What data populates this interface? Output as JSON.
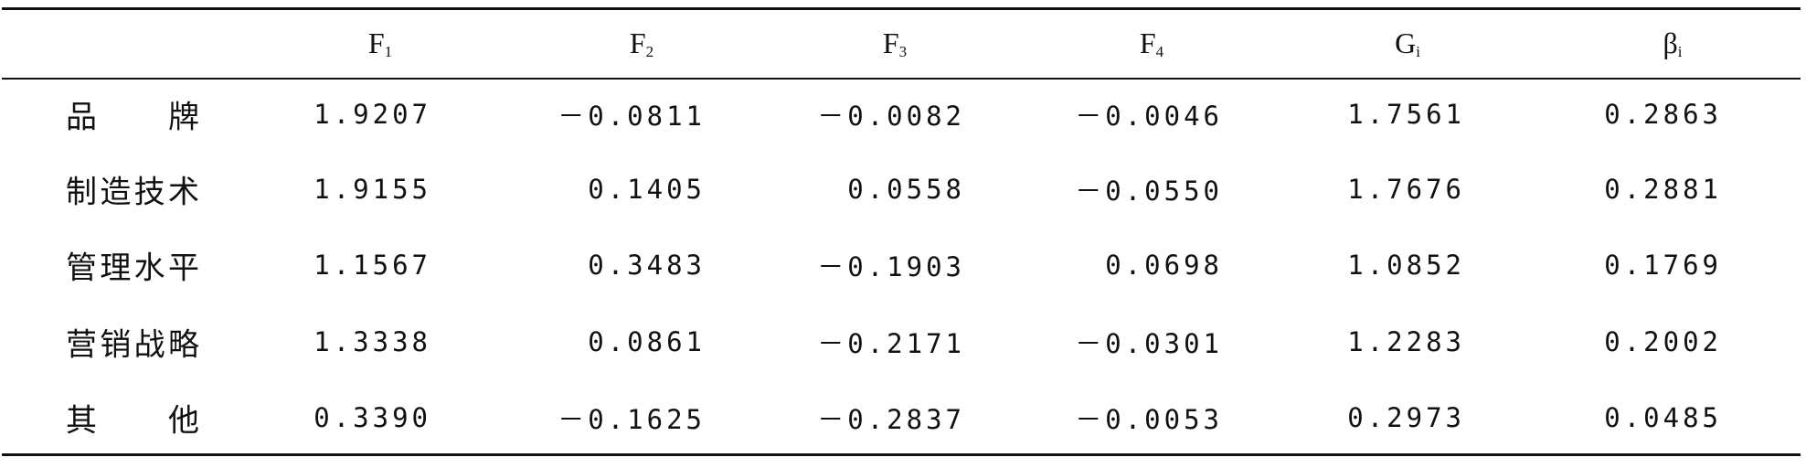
{
  "table": {
    "header": [
      {
        "base": "F",
        "sub": "1"
      },
      {
        "base": "F",
        "sub": "2"
      },
      {
        "base": "F",
        "sub": "3"
      },
      {
        "base": "F",
        "sub": "4"
      },
      {
        "base": "G",
        "sub": "i"
      },
      {
        "base": "β",
        "sub": "i"
      }
    ],
    "rows": [
      {
        "label": "品牌",
        "cells": [
          "1.9207",
          "－0.0811",
          "－0.0082",
          "－0.0046",
          "1.7561",
          "0.2863"
        ]
      },
      {
        "label": "制造技术",
        "cells": [
          "1.9155",
          "0.1405",
          "0.0558",
          "－0.0550",
          "1.7676",
          "0.2881"
        ]
      },
      {
        "label": "管理水平",
        "cells": [
          "1.1567",
          "0.3483",
          "－0.1903",
          "0.0698",
          "1.0852",
          "0.1769"
        ]
      },
      {
        "label": "营销战略",
        "cells": [
          "1.3338",
          "0.0861",
          "－0.2171",
          "－0.0301",
          "1.2283",
          "0.2002"
        ]
      },
      {
        "label": "其他",
        "cells": [
          "0.3390",
          "－0.1625",
          "－0.2837",
          "－0.0053",
          "0.2973",
          "0.0485"
        ]
      }
    ]
  }
}
